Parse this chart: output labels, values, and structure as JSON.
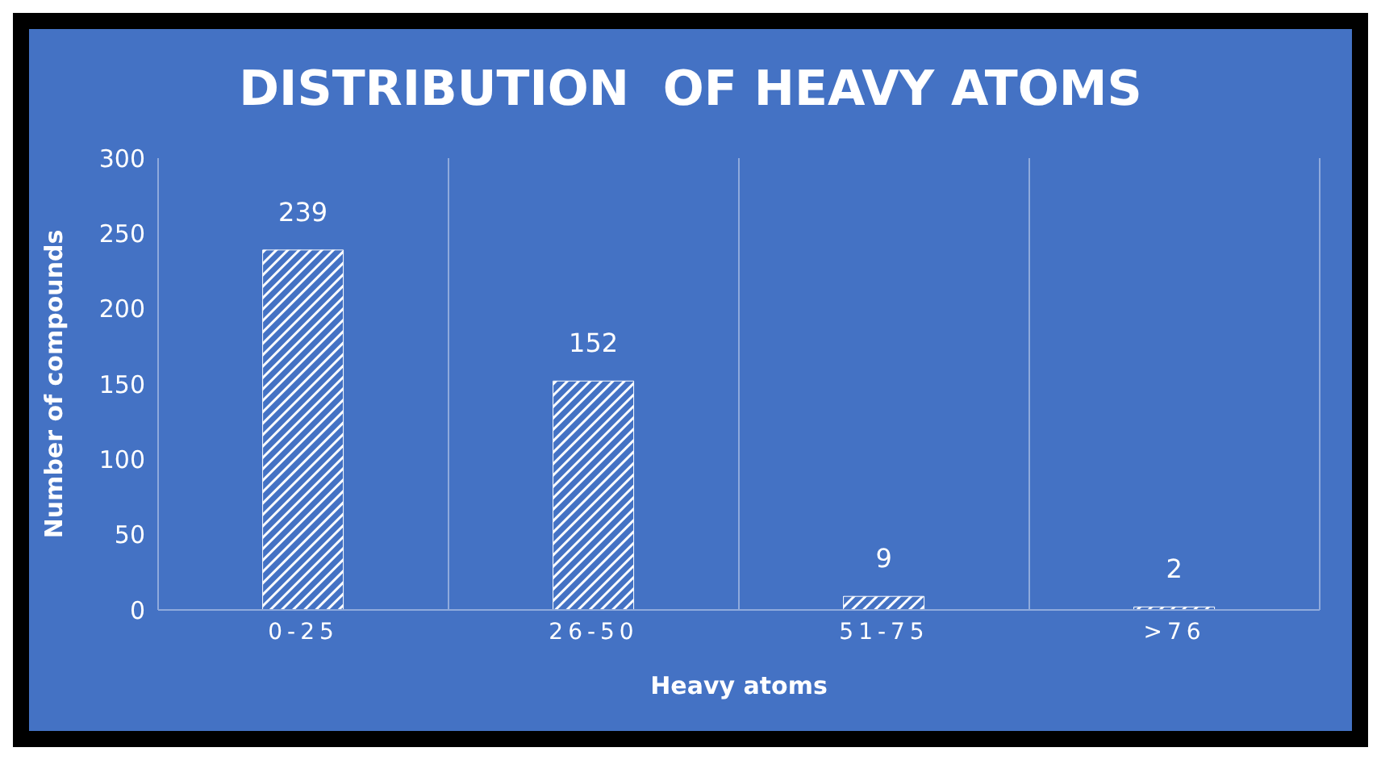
{
  "chart_data": {
    "type": "bar",
    "title": "DISTRIBUTION  OF HEAVY ATOMS",
    "xlabel": "Heavy atoms",
    "ylabel": "Number of compounds",
    "categories": [
      "0-25",
      "26-50",
      "51-75",
      ">76"
    ],
    "values": [
      239,
      152,
      9,
      2
    ],
    "color": "#ffffff",
    "ylim": [
      0,
      300
    ],
    "yticks": [
      0,
      50,
      100,
      150,
      200,
      250,
      300
    ],
    "grid": "x",
    "data_labels": true
  }
}
